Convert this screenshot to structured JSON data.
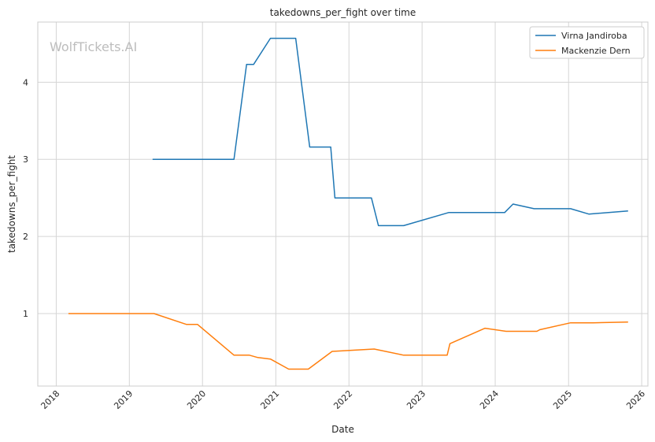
{
  "watermark": "WolfTickets.AI",
  "chart_data": {
    "type": "line",
    "title": "takedowns_per_fight over time",
    "xlabel": "Date",
    "ylabel": "takedowns_per_fight",
    "x_ticks": [
      "2018",
      "2019",
      "2020",
      "2021",
      "2022",
      "2023",
      "2024",
      "2025",
      "2026"
    ],
    "y_ticks": [
      "1",
      "2",
      "3",
      "4"
    ],
    "xlim": [
      "2017-10-01",
      "2026-02-01"
    ],
    "ylim": [
      0.06,
      4.78
    ],
    "grid": true,
    "legend_position": "top-right",
    "series": [
      {
        "name": "Virna Jandiroba",
        "color": "#1f77b4",
        "points": [
          [
            "2019-04-27",
            3.0
          ],
          [
            "2020-06-06",
            3.0
          ],
          [
            "2020-08-08",
            4.23
          ],
          [
            "2020-09-12",
            4.23
          ],
          [
            "2020-12-05",
            4.57
          ],
          [
            "2021-04-10",
            4.57
          ],
          [
            "2021-06-19",
            3.16
          ],
          [
            "2021-10-02",
            3.16
          ],
          [
            "2021-10-23",
            2.5
          ],
          [
            "2022-04-23",
            2.5
          ],
          [
            "2022-05-28",
            2.14
          ],
          [
            "2022-10-01",
            2.14
          ],
          [
            "2023-05-13",
            2.31
          ],
          [
            "2024-02-17",
            2.31
          ],
          [
            "2024-03-30",
            2.42
          ],
          [
            "2024-07-13",
            2.36
          ],
          [
            "2025-01-11",
            2.36
          ],
          [
            "2025-04-12",
            2.29
          ],
          [
            "2025-10-25",
            2.33
          ]
        ]
      },
      {
        "name": "Mackenzie Dern",
        "color": "#ff7f0e",
        "points": [
          [
            "2018-03-03",
            1.0
          ],
          [
            "2019-05-04",
            1.0
          ],
          [
            "2019-10-12",
            0.86
          ],
          [
            "2019-12-07",
            0.86
          ],
          [
            "2020-06-06",
            0.46
          ],
          [
            "2020-08-22",
            0.46
          ],
          [
            "2020-10-03",
            0.43
          ],
          [
            "2020-12-05",
            0.41
          ],
          [
            "2021-03-06",
            0.28
          ],
          [
            "2021-06-12",
            0.28
          ],
          [
            "2021-10-09",
            0.51
          ],
          [
            "2022-05-07",
            0.54
          ],
          [
            "2022-10-01",
            0.46
          ],
          [
            "2023-05-06",
            0.46
          ],
          [
            "2023-05-20",
            0.61
          ],
          [
            "2023-11-11",
            0.81
          ],
          [
            "2024-02-24",
            0.77
          ],
          [
            "2024-07-27",
            0.77
          ],
          [
            "2024-08-10",
            0.79
          ],
          [
            "2025-01-11",
            0.88
          ],
          [
            "2025-05-03",
            0.88
          ],
          [
            "2025-10-25",
            0.89
          ]
        ]
      }
    ]
  }
}
